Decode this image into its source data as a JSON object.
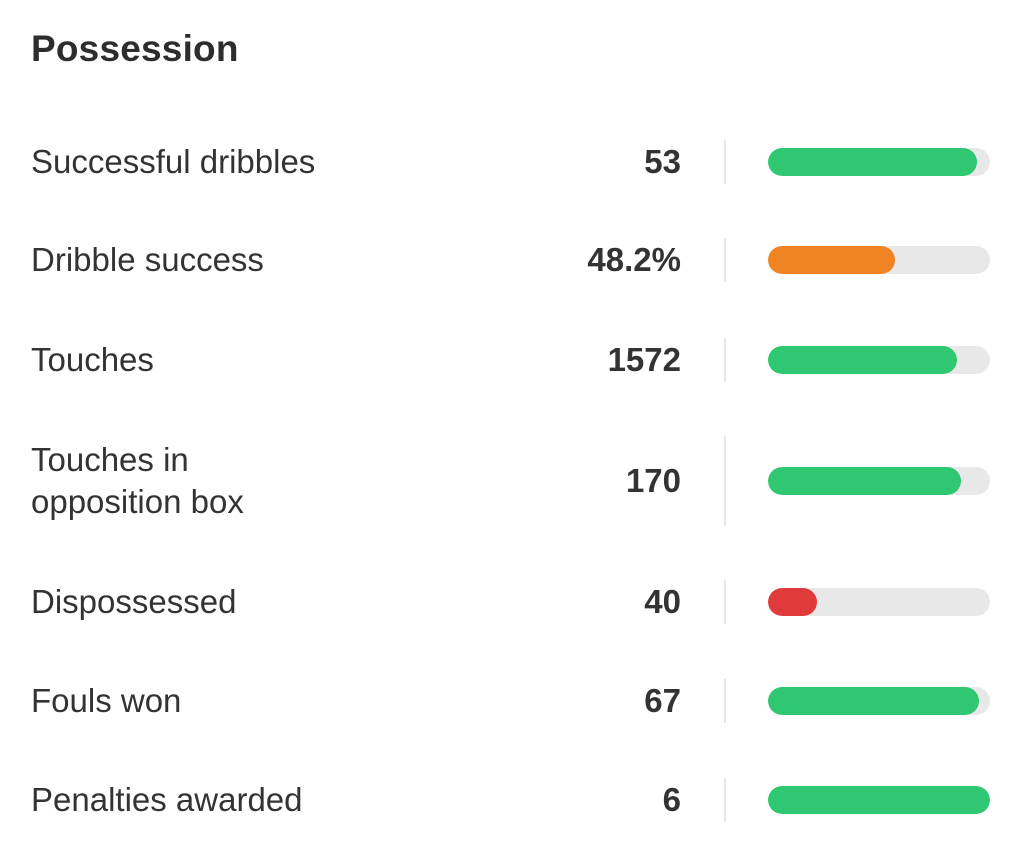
{
  "section": {
    "title": "Possession"
  },
  "colors": {
    "good": "#2fc771",
    "average": "#f08422",
    "poor": "#e03a3a",
    "track": "#e8e8e8"
  },
  "stats": [
    {
      "label": "Successful dribbles",
      "value": "53",
      "bar_fraction": 0.94,
      "rating": "good"
    },
    {
      "label": "Dribble success",
      "value": "48.2%",
      "bar_fraction": 0.57,
      "rating": "average"
    },
    {
      "label": "Touches",
      "value": "1572",
      "bar_fraction": 0.85,
      "rating": "good"
    },
    {
      "label": "Touches in\nopposition box",
      "value": "170",
      "bar_fraction": 0.87,
      "rating": "good"
    },
    {
      "label": "Dispossessed",
      "value": "40",
      "bar_fraction": 0.22,
      "rating": "poor"
    },
    {
      "label": "Fouls won",
      "value": "67",
      "bar_fraction": 0.95,
      "rating": "good"
    },
    {
      "label": "Penalties awarded",
      "value": "6",
      "bar_fraction": 1.0,
      "rating": "good"
    }
  ]
}
